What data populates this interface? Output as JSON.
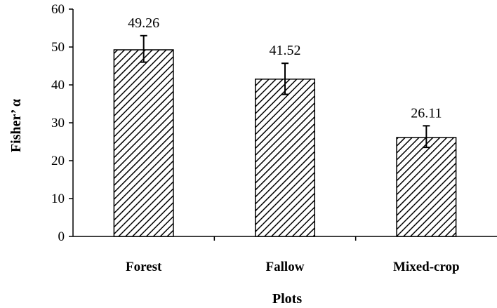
{
  "chart_data": {
    "type": "bar",
    "categories": [
      "Forest",
      "Fallow",
      "Mixed-crop"
    ],
    "values": [
      49.26,
      41.52,
      26.11
    ],
    "value_labels": [
      "49.26",
      "41.52",
      "26.11"
    ],
    "error_low": [
      46.0,
      37.5,
      23.5
    ],
    "error_high": [
      53.0,
      45.7,
      29.2
    ],
    "title": "",
    "xlabel": "Plots",
    "ylabel": "Fisher’ α",
    "ylim": [
      0,
      60
    ],
    "yticks": [
      "0",
      "10",
      "20",
      "30",
      "40",
      "50",
      "60"
    ],
    "ytick_values": [
      0,
      10,
      20,
      30,
      40,
      50,
      60
    ],
    "grid": false,
    "bar_fill": "diagonal-hatch",
    "bar_color": "#000000"
  }
}
